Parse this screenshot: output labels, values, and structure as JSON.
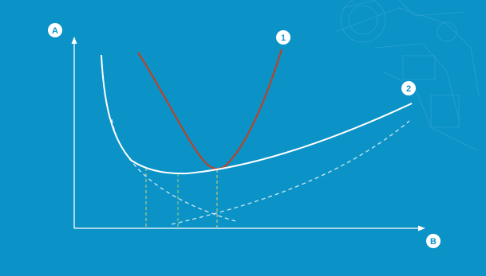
{
  "colors": {
    "background": "#0b93c8",
    "curve_1": "#b5452a",
    "curve_2": "#ffffff",
    "dashed_curves": "#cfe6f0",
    "guide_lines": "#d9d46a",
    "badge_fill": "#ffffff",
    "badge_text": "#0b93c8"
  },
  "labels": {
    "y_axis": "A",
    "x_axis": "B",
    "curve_1": "1",
    "curve_2": "2"
  }
}
